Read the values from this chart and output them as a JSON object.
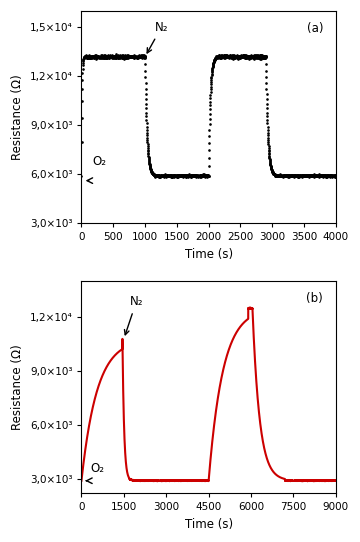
{
  "panel_a": {
    "color": "black",
    "marker": ".",
    "markersize": 1.8,
    "linewidth": 0,
    "xlim": [
      0,
      4000
    ],
    "ylim": [
      3000,
      16000
    ],
    "xticks": [
      0,
      500,
      1000,
      1500,
      2000,
      2500,
      3000,
      3500,
      4000
    ],
    "yticks": [
      3000,
      6000,
      9000,
      12000,
      15000
    ],
    "xlabel": "Time (s)",
    "ylabel": "Resistance (Ω)",
    "label": "(a)",
    "baseline_low": 5900,
    "baseline_high": 13200,
    "n2_x": 1000,
    "n2_label": "N₂",
    "o2_label": "O₂"
  },
  "panel_b": {
    "color": "#cc0000",
    "linewidth": 1.5,
    "xlim": [
      0,
      9000
    ],
    "ylim": [
      2200,
      14000
    ],
    "xticks": [
      0,
      1500,
      3000,
      4500,
      6000,
      7500,
      9000
    ],
    "yticks": [
      3000,
      6000,
      9000,
      12000
    ],
    "xlabel": "Time (s)",
    "ylabel": "Resistance (Ω)",
    "label": "(b)",
    "baseline_low": 2900,
    "baseline_high_1": 10800,
    "baseline_high_2": 12500,
    "n2_x": 1500,
    "n2_label": "N₂",
    "o2_label": "O₂"
  }
}
